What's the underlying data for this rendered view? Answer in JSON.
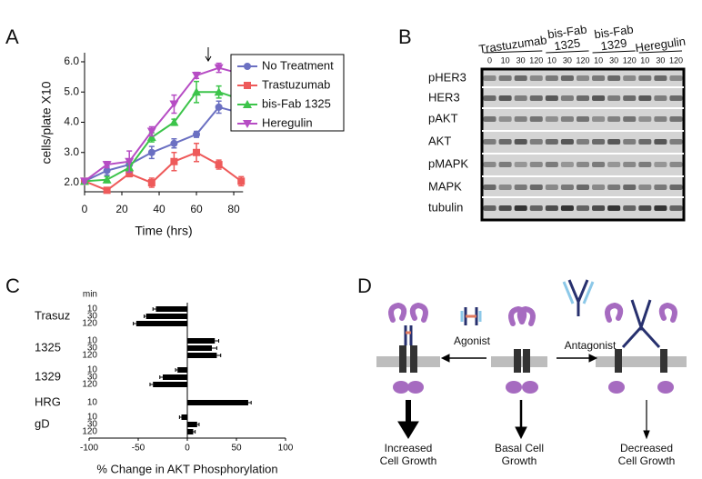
{
  "panel_labels": [
    "A",
    "B",
    "C",
    "D"
  ],
  "chart_data": [
    {
      "type": "line",
      "x_label": "Time (hrs)",
      "y_label": "cells/plate X10",
      "x": [
        0,
        12,
        24,
        36,
        48,
        60,
        72,
        84
      ],
      "xlim": [
        0,
        85
      ],
      "xticks": [
        0,
        20,
        40,
        60,
        80
      ],
      "ylim": [
        1.7,
        6.3
      ],
      "yticks": [
        {
          "value": 2,
          "label": "2.0"
        },
        {
          "value": 3,
          "label": "3.0"
        },
        {
          "value": 4,
          "label": "4.0"
        },
        {
          "value": 5,
          "label": "5.0"
        },
        {
          "value": 6,
          "label": "6.0"
        }
      ],
      "series": [
        {
          "name": "No  Treatment",
          "color": "#6b70c2",
          "marker": "circle",
          "values": [
            2.05,
            2.4,
            2.6,
            3.0,
            3.3,
            3.6,
            4.5,
            4.3
          ],
          "errors": [
            0.05,
            0.15,
            0.15,
            0.2,
            0.15,
            0.1,
            0.2,
            0.15
          ]
        },
        {
          "name": "Trastuzumab",
          "color": "#ee5a5a",
          "marker": "square",
          "values": [
            2.05,
            1.75,
            2.3,
            2.0,
            2.7,
            3.0,
            2.6,
            2.05
          ],
          "errors": [
            0.05,
            0.05,
            0.1,
            0.15,
            0.3,
            0.3,
            0.15,
            0.15
          ]
        },
        {
          "name": "bis-Fab 1325",
          "color": "#3cc44a",
          "marker": "triangle-up",
          "values": [
            2.05,
            2.1,
            2.5,
            3.5,
            4.0,
            5.0,
            5.0,
            4.75
          ],
          "errors": [
            0.05,
            0.1,
            0.15,
            0.15,
            0.1,
            0.35,
            0.2,
            0.15
          ]
        },
        {
          "name": "Heregulin",
          "color": "#b64cc4",
          "marker": "triangle-down",
          "values": [
            2.05,
            2.6,
            2.7,
            3.7,
            4.6,
            5.55,
            5.8,
            5.6
          ],
          "errors": [
            0.05,
            0.1,
            0.35,
            0.15,
            0.3,
            0.1,
            0.15,
            0.45
          ]
        }
      ]
    },
    {
      "type": "hbar",
      "x_label": "% Change in AKT Phosphorylation",
      "row_header": "min",
      "xlim": [
        -100,
        100
      ],
      "xticks": [
        -100,
        -50,
        0,
        50,
        100
      ],
      "color": "#000000",
      "groups": [
        {
          "name": "Trasuz",
          "categories": [
            "10",
            "30",
            "120"
          ],
          "values": [
            -32,
            -42,
            -52
          ],
          "errors": [
            3,
            2,
            3
          ]
        },
        {
          "name": "1325",
          "categories": [
            "10",
            "30",
            "120"
          ],
          "values": [
            28,
            25,
            30
          ],
          "errors": [
            4,
            5,
            4
          ]
        },
        {
          "name": "1329",
          "categories": [
            "10",
            "30",
            "120"
          ],
          "values": [
            -10,
            -25,
            -35
          ],
          "errors": [
            2,
            3,
            3
          ]
        },
        {
          "name": "HRG",
          "categories": [
            "10"
          ],
          "values": [
            62
          ],
          "errors": [
            3
          ]
        },
        {
          "name": "gD",
          "categories": [
            "10",
            "30",
            "120"
          ],
          "values": [
            -6,
            10,
            6
          ],
          "errors": [
            2,
            2,
            2
          ]
        }
      ]
    }
  ],
  "blot": {
    "treatments": [
      {
        "lines": [
          "Trastuzumab"
        ]
      },
      {
        "lines": [
          "bis-Fab",
          "1325"
        ]
      },
      {
        "lines": [
          "bis-Fab",
          "1329"
        ]
      },
      {
        "lines": [
          "Heregulin"
        ]
      }
    ],
    "lanes": [
      "0",
      "10",
      "30",
      "120",
      "10",
      "30",
      "120",
      "10",
      "30",
      "120",
      "10",
      "30",
      "120"
    ],
    "rows": [
      "pHER3",
      "HER3",
      "pAKT",
      "AKT",
      "pMAPK",
      "MAPK",
      "tubulin"
    ]
  },
  "diagram": {
    "agonist": "Agonist",
    "antagonist": "Antagonist",
    "outcomes": [
      {
        "lines": [
          "Increased",
          "Cell Growth"
        ]
      },
      {
        "lines": [
          "Basal Cell",
          "Growth"
        ]
      },
      {
        "lines": [
          "Decreased",
          "Cell Growth"
        ]
      }
    ]
  }
}
